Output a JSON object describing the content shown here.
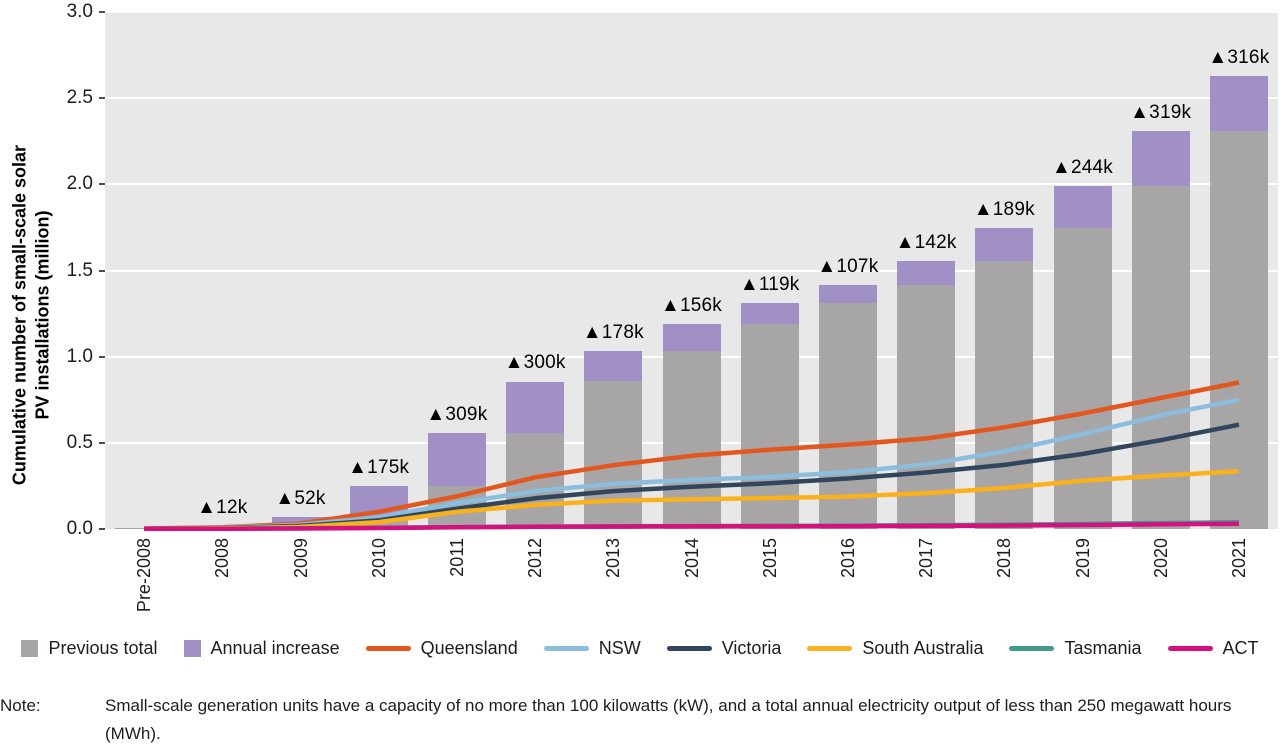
{
  "chart_data": {
    "type": "combo-bar-line",
    "title": "",
    "ylabel": "Cumulative number of small-scale solar PV installations (million)",
    "ylabel_lines": [
      "Cumulative number of small-scale solar",
      "PV installations (million)"
    ],
    "xlabel": "",
    "ylim": [
      0,
      3.0
    ],
    "y_ticks": [
      "0.0",
      "0.5",
      "1.0",
      "1.5",
      "2.0",
      "2.5",
      "3.0"
    ],
    "grid": true,
    "legend_position": "bottom",
    "plot_background": "#e9e8e8",
    "gridline_color": "#ffffff",
    "categories": [
      "Pre-2008",
      "2008",
      "2009",
      "2010",
      "2011",
      "2012",
      "2013",
      "2014",
      "2015",
      "2016",
      "2017",
      "2018",
      "2019",
      "2020",
      "2021"
    ],
    "bar_series": [
      {
        "name": "Previous total",
        "color": "#a7a5a5",
        "values": [
          0.008,
          0.008,
          0.02,
          0.072,
          0.247,
          0.556,
          0.856,
          1.034,
          1.19,
          1.309,
          1.416,
          1.558,
          1.747,
          1.991,
          2.31
        ]
      },
      {
        "name": "Annual increase",
        "color": "#a190c5",
        "values": [
          0.0,
          0.012,
          0.052,
          0.175,
          0.309,
          0.3,
          0.178,
          0.156,
          0.119,
          0.107,
          0.142,
          0.189,
          0.244,
          0.319,
          0.316
        ]
      }
    ],
    "bar_annotations": [
      "",
      "▲12k",
      "▲52k",
      "▲175k",
      "▲309k",
      "▲300k",
      "▲178k",
      "▲156k",
      "▲119k",
      "▲107k",
      "▲142k",
      "▲189k",
      "▲244k",
      "▲319k",
      "▲316k"
    ],
    "line_series": [
      {
        "name": "Queensland",
        "color": "#e2571d",
        "values": [
          0.003,
          0.01,
          0.032,
          0.1,
          0.19,
          0.3,
          0.37,
          0.425,
          0.46,
          0.49,
          0.525,
          0.59,
          0.67,
          0.76,
          0.85
        ]
      },
      {
        "name": "NSW",
        "color": "#8bbedd",
        "values": [
          0.002,
          0.008,
          0.025,
          0.068,
          0.15,
          0.22,
          0.262,
          0.285,
          0.302,
          0.33,
          0.375,
          0.45,
          0.55,
          0.66,
          0.75
        ]
      },
      {
        "name": "Victoria",
        "color": "#31455c",
        "values": [
          0.002,
          0.006,
          0.018,
          0.05,
          0.118,
          0.178,
          0.22,
          0.245,
          0.265,
          0.293,
          0.328,
          0.372,
          0.435,
          0.515,
          0.605
        ]
      },
      {
        "name": "South Australia",
        "color": "#fbb11b",
        "values": [
          0.001,
          0.004,
          0.012,
          0.04,
          0.1,
          0.14,
          0.165,
          0.172,
          0.18,
          0.188,
          0.208,
          0.238,
          0.28,
          0.31,
          0.335
        ]
      },
      {
        "name": "Tasmania",
        "color": "#419a8a",
        "values": [
          0.001,
          0.002,
          0.004,
          0.007,
          0.011,
          0.014,
          0.016,
          0.017,
          0.018,
          0.019,
          0.022,
          0.025,
          0.029,
          0.034,
          0.039
        ]
      },
      {
        "name": "ACT",
        "color": "#d4117e",
        "values": [
          0.001,
          0.002,
          0.003,
          0.006,
          0.01,
          0.013,
          0.014,
          0.015,
          0.015,
          0.016,
          0.018,
          0.02,
          0.023,
          0.027,
          0.03
        ]
      }
    ]
  },
  "note": {
    "label": "Note:",
    "text": "Small-scale generation units have a capacity of no more than 100 kilowatts (kW), and a total annual electricity output of less than 250 megawatt hours (MWh)."
  }
}
